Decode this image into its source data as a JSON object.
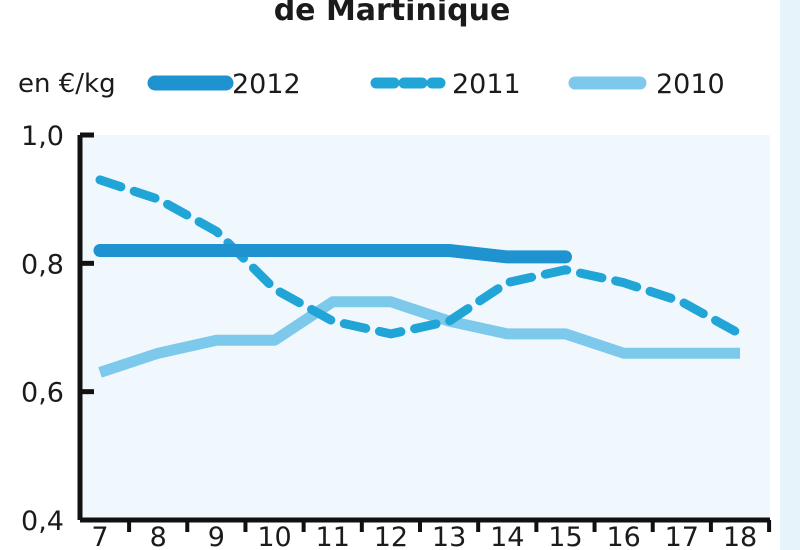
{
  "title": "de Martinique",
  "unit_label": "en €/kg",
  "colors": {
    "plot_background": "#f1f8fd",
    "axis": "#111111",
    "right_strip": "#e6f3fb",
    "series_2012": "#1e93d0",
    "series_2011": "#21a5d7",
    "series_2010": "#7cc9ec"
  },
  "chart_data": {
    "type": "line",
    "x": [
      7,
      8,
      9,
      10,
      11,
      12,
      13,
      14,
      15,
      16,
      17,
      18
    ],
    "xlim": [
      7,
      18
    ],
    "ylim": [
      0.4,
      1.0
    ],
    "y_ticks": [
      "0,4",
      "0,6",
      "0,8",
      "1,0"
    ],
    "y_tick_values": [
      0.4,
      0.6,
      0.8,
      1.0
    ],
    "x_ticks": [
      "7",
      "8",
      "9",
      "10",
      "11",
      "12",
      "13",
      "14",
      "15",
      "16",
      "17",
      "18"
    ],
    "grid": false,
    "legend_position": "top",
    "series": [
      {
        "name": "2012",
        "style": "solid-thick",
        "x": [
          7,
          8,
          9,
          10,
          11,
          12,
          13,
          14,
          15
        ],
        "values": [
          0.82,
          0.82,
          0.82,
          0.82,
          0.82,
          0.82,
          0.82,
          0.81,
          0.81
        ]
      },
      {
        "name": "2011",
        "style": "dashed",
        "x": [
          7,
          8,
          9,
          10,
          11,
          12,
          13,
          14,
          15,
          16,
          17,
          18
        ],
        "values": [
          0.93,
          0.9,
          0.85,
          0.76,
          0.71,
          0.69,
          0.71,
          0.77,
          0.79,
          0.77,
          0.74,
          0.69
        ]
      },
      {
        "name": "2010",
        "style": "solid-light",
        "x": [
          7,
          8,
          9,
          10,
          11,
          12,
          13,
          14,
          15,
          16,
          17,
          18
        ],
        "values": [
          0.63,
          0.66,
          0.68,
          0.68,
          0.74,
          0.74,
          0.71,
          0.69,
          0.69,
          0.66,
          0.66,
          0.66
        ]
      }
    ]
  }
}
